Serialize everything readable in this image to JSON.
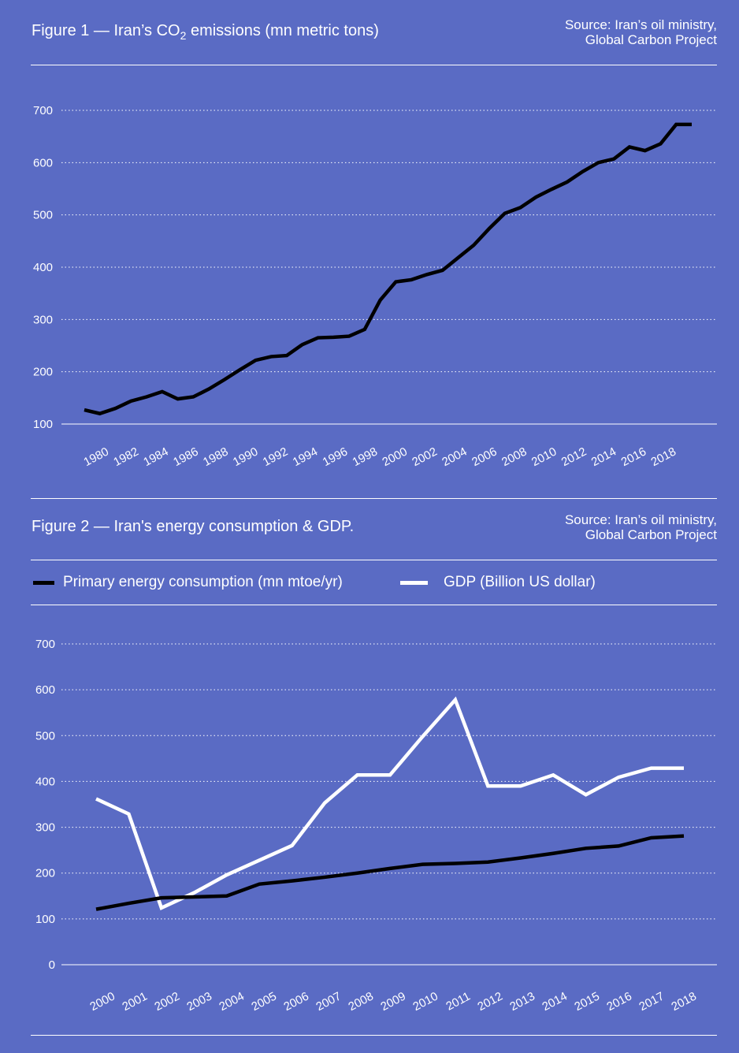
{
  "colors": {
    "background": "#5a6bc4",
    "energy_line": "#000000",
    "gdp_line": "#ffffff",
    "co2_line": "#000000",
    "text": "#ffffff"
  },
  "figure1": {
    "title_pre": "Figure 1 — Iran’s CO",
    "title_sub": "2",
    "title_post": " emissions (mn metric tons)",
    "source_line1": "Source: Iran’s oil ministry,",
    "source_line2": "Global Carbon Project"
  },
  "figure2": {
    "title": "Figure 2 — Iran's energy consumption & GDP.",
    "source_line1": "Source: Iran’s oil ministry,",
    "source_line2": "Global Carbon Project",
    "legend": [
      {
        "label": "Primary energy consumption (mn mtoe/yr)",
        "color": "#000000"
      },
      {
        "label": "GDP (Billion US dollar)",
        "color": "#ffffff"
      }
    ]
  },
  "chart_data": [
    {
      "type": "line",
      "title": "Figure 1 — Iran’s CO2 emissions (mn metric tons)",
      "ylim": [
        100,
        700
      ],
      "yticks": [
        100,
        200,
        300,
        400,
        500,
        600,
        700
      ],
      "xtick_labels": [
        "1980",
        "1982",
        "1984",
        "1986",
        "1988",
        "1990",
        "1992",
        "1994",
        "1996",
        "1998",
        "2000",
        "2002",
        "2004",
        "2006",
        "2008",
        "2010",
        "2012",
        "2014",
        "2016",
        "2018"
      ],
      "grid": "horizontal dotted",
      "x": [
        1980,
        1981,
        1982,
        1983,
        1984,
        1985,
        1986,
        1987,
        1988,
        1989,
        1990,
        1991,
        1992,
        1993,
        1994,
        1995,
        1996,
        1997,
        1998,
        1999,
        2000,
        2001,
        2002,
        2003,
        2004,
        2005,
        2006,
        2007,
        2008,
        2009,
        2010,
        2011,
        2012,
        2013,
        2014,
        2015,
        2016,
        2017,
        2018,
        2019
      ],
      "series": [
        {
          "values": [
            127,
            120,
            130,
            144,
            152,
            162,
            148,
            152,
            167,
            185,
            204,
            222,
            229,
            231,
            252,
            265,
            266,
            268,
            281,
            337,
            372,
            376,
            386,
            394,
            418,
            442,
            474,
            503,
            514,
            534,
            549,
            563,
            583,
            600,
            607,
            630,
            623,
            636,
            673,
            673
          ]
        }
      ]
    },
    {
      "type": "line",
      "title": "Figure 2 — Iran's energy consumption & GDP.",
      "ylim": [
        0,
        700
      ],
      "yticks": [
        0,
        100,
        200,
        300,
        400,
        500,
        600,
        700
      ],
      "x": [
        "2000",
        "2001",
        "2002",
        "2003",
        "2004",
        "2005",
        "2006",
        "2007",
        "2008",
        "2009",
        "2010",
        "2011",
        "2012",
        "2013",
        "2014",
        "2015",
        "2016",
        "2017",
        "2018"
      ],
      "grid": "horizontal dotted",
      "legend": "top",
      "series": [
        {
          "name": "Primary energy consumption (mn mtoe/yr)",
          "values": [
            121,
            134,
            146,
            148,
            150,
            176,
            183,
            191,
            200,
            210,
            219,
            221,
            224,
            233,
            243,
            254,
            259,
            277,
            281
          ]
        },
        {
          "name": "GDP (Billion US dollar)",
          "values": [
            362,
            329,
            124,
            157,
            196,
            228,
            260,
            353,
            414,
            414,
            498,
            578,
            390,
            390,
            414,
            371,
            409,
            429,
            429
          ]
        }
      ]
    }
  ]
}
